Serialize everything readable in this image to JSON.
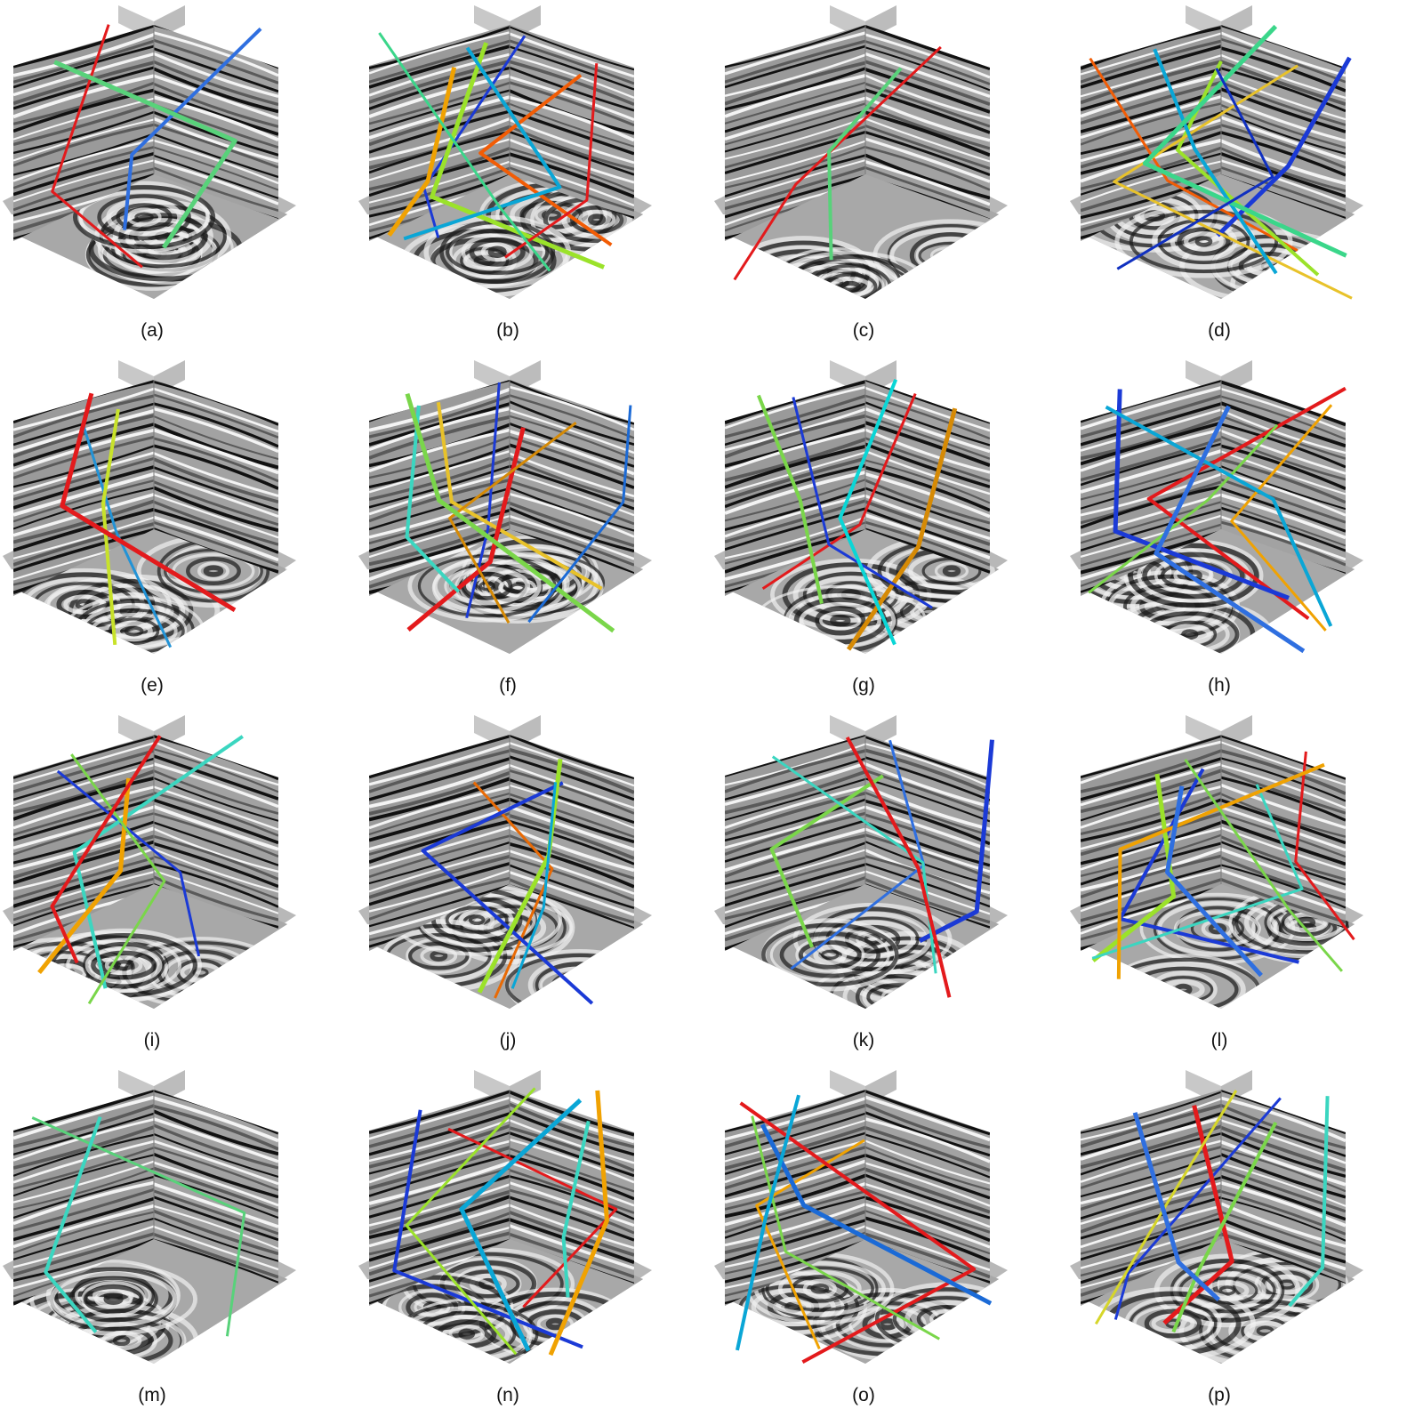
{
  "panels": [
    {
      "label": "(a)",
      "faults": [
        "#e31a1c",
        "#2f6fe0",
        "#58d27a"
      ]
    },
    {
      "label": "(b)",
      "faults": [
        "#1b3ad6",
        "#f25c05",
        "#9be22a",
        "#e31a1c",
        "#0aa6d6",
        "#f0a202",
        "#3bd68a"
      ]
    },
    {
      "label": "(c)",
      "faults": [
        "#e31a1c",
        "#58d27a"
      ]
    },
    {
      "label": "(d)",
      "faults": [
        "#f25c05",
        "#9be22a",
        "#1b3ad6",
        "#e8c22a",
        "#0aa6d6",
        "#3bd68a",
        "#1030c0"
      ]
    },
    {
      "label": "(e)",
      "faults": [
        "#2293d6",
        "#c8e22a",
        "#e31a1c"
      ]
    },
    {
      "label": "(f)",
      "faults": [
        "#1b3ad6",
        "#e8c22a",
        "#e31a1c",
        "#d68a05",
        "#3bd6c0",
        "#7ad64a",
        "#1b6ad6"
      ]
    },
    {
      "label": "(g)",
      "faults": [
        "#e31a1c",
        "#7ad64a",
        "#d68a05",
        "#1b3ad6",
        "#0ad6d6"
      ]
    },
    {
      "label": "(h)",
      "faults": [
        "#f0a202",
        "#e31a1c",
        "#1b3ad6",
        "#7ad64a",
        "#0aa6d6",
        "#2f6fe0"
      ]
    },
    {
      "label": "(i)",
      "faults": [
        "#1b3ad6",
        "#3bd6c0",
        "#f0a202",
        "#7ad64a",
        "#e31a1c"
      ]
    },
    {
      "label": "(j)",
      "faults": [
        "#e86a05",
        "#1b3ad6",
        "#9be22a",
        "#0aa6d6"
      ]
    },
    {
      "label": "(k)",
      "faults": [
        "#2f6fe0",
        "#7ad64a",
        "#1b3ad6",
        "#3bd6c0",
        "#e31a1c"
      ]
    },
    {
      "label": "(l)",
      "faults": [
        "#e31a1c",
        "#1b3ad6",
        "#9be22a",
        "#3bd6c0",
        "#f0a202",
        "#2f6fe0",
        "#7ad64a"
      ]
    },
    {
      "label": "(m)",
      "faults": [
        "#58d27a",
        "#3bd6c0"
      ]
    },
    {
      "label": "(n)",
      "faults": [
        "#e31a1c",
        "#1b3ad6",
        "#f0a202",
        "#9be22a",
        "#3bd6c0",
        "#0aa6d6"
      ]
    },
    {
      "label": "(o)",
      "faults": [
        "#f0a202",
        "#e31a1c",
        "#1b6ad6",
        "#7ad64a",
        "#0aa6d6"
      ]
    },
    {
      "label": "(p)",
      "faults": [
        "#1b3ad6",
        "#3bd6c0",
        "#e31a1c",
        "#d6d62a",
        "#7ad64a",
        "#2f6fe0"
      ]
    }
  ]
}
